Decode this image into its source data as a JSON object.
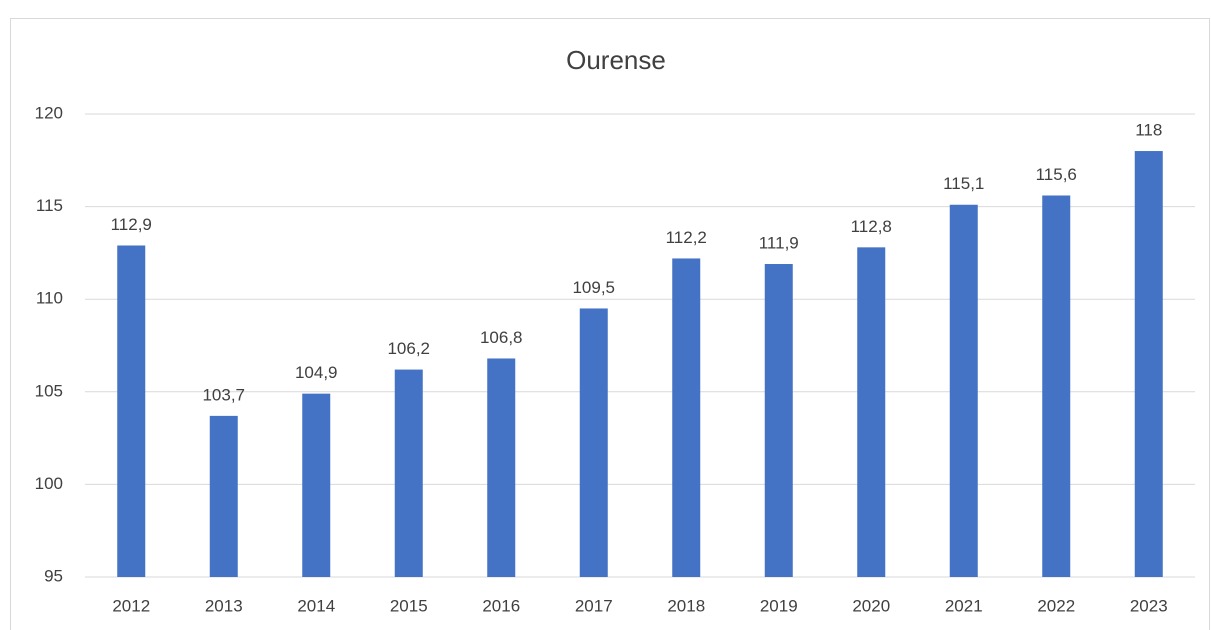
{
  "chart_data": {
    "type": "bar",
    "title": "Ourense",
    "categories": [
      "2012",
      "2013",
      "2014",
      "2015",
      "2016",
      "2017",
      "2018",
      "2019",
      "2020",
      "2021",
      "2022",
      "2023"
    ],
    "values": [
      112.9,
      103.7,
      104.9,
      106.2,
      106.8,
      109.5,
      112.2,
      111.9,
      112.8,
      115.1,
      115.6,
      118
    ],
    "value_labels": [
      "112,9",
      "103,7",
      "104,9",
      "106,2",
      "106,8",
      "109,5",
      "112,2",
      "111,9",
      "112,8",
      "115,1",
      "115,6",
      "118"
    ],
    "color": "#4472c4",
    "ylim": [
      95,
      120
    ],
    "yticks": [
      95,
      100,
      105,
      110,
      115,
      120
    ],
    "grid": true
  }
}
